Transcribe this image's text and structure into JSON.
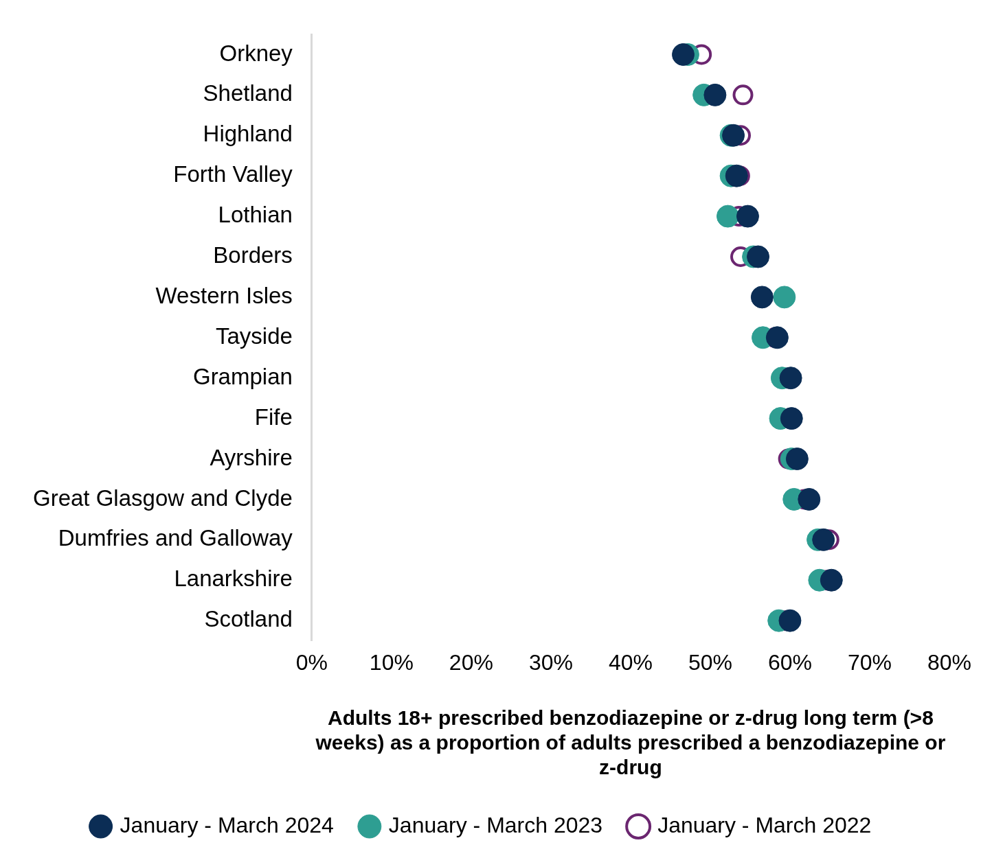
{
  "chart_data": {
    "type": "dot",
    "orientation": "horizontal",
    "x_label": "Adults 18+ prescribed benzodiazepine or z-drug long term (>8 weeks) as a proportion of adults prescribed a benzodiazepine or z-drug",
    "categories": [
      "Orkney",
      "Shetland",
      "Highland",
      "Forth Valley",
      "Lothian",
      "Borders",
      "Western Isles",
      "Tayside",
      "Grampian",
      "Fife",
      "Ayrshire",
      "Great Glasgow and Clyde",
      "Dumfries and Galloway",
      "Lanarkshire",
      "Scotland"
    ],
    "series": [
      {
        "name": "January - March 2022",
        "color": "#6b2670",
        "marker": "open_circle",
        "values": [
          48.9,
          54.1,
          53.8,
          53.7,
          53.6,
          53.8,
          56.5,
          58.1,
          60.0,
          60.0,
          59.8,
          61.8,
          64.9,
          64.6,
          59.3
        ]
      },
      {
        "name": "January - March 2023",
        "color": "#2e9e92",
        "marker": "circle",
        "values": [
          47.2,
          49.2,
          52.6,
          52.6,
          52.2,
          55.4,
          59.3,
          56.6,
          59.0,
          58.8,
          60.2,
          60.5,
          63.5,
          63.7,
          58.6
        ]
      },
      {
        "name": "January - March 2024",
        "color": "#0b2d55",
        "marker": "circle",
        "values": [
          46.6,
          50.6,
          52.9,
          53.3,
          54.7,
          56.0,
          56.5,
          58.4,
          60.1,
          60.2,
          60.9,
          62.4,
          64.2,
          65.2,
          60.0
        ]
      }
    ],
    "xlim": [
      0,
      80
    ],
    "xticks": [
      {
        "value": 0,
        "label": "0%"
      },
      {
        "value": 10,
        "label": "10%"
      },
      {
        "value": 20,
        "label": "20%"
      },
      {
        "value": 30,
        "label": "30%"
      },
      {
        "value": 40,
        "label": "40%"
      },
      {
        "value": 50,
        "label": "50%"
      },
      {
        "value": 60,
        "label": "60%"
      },
      {
        "value": 70,
        "label": "70%"
      },
      {
        "value": 80,
        "label": "80%"
      }
    ],
    "grid": false,
    "legend": "bottom"
  }
}
